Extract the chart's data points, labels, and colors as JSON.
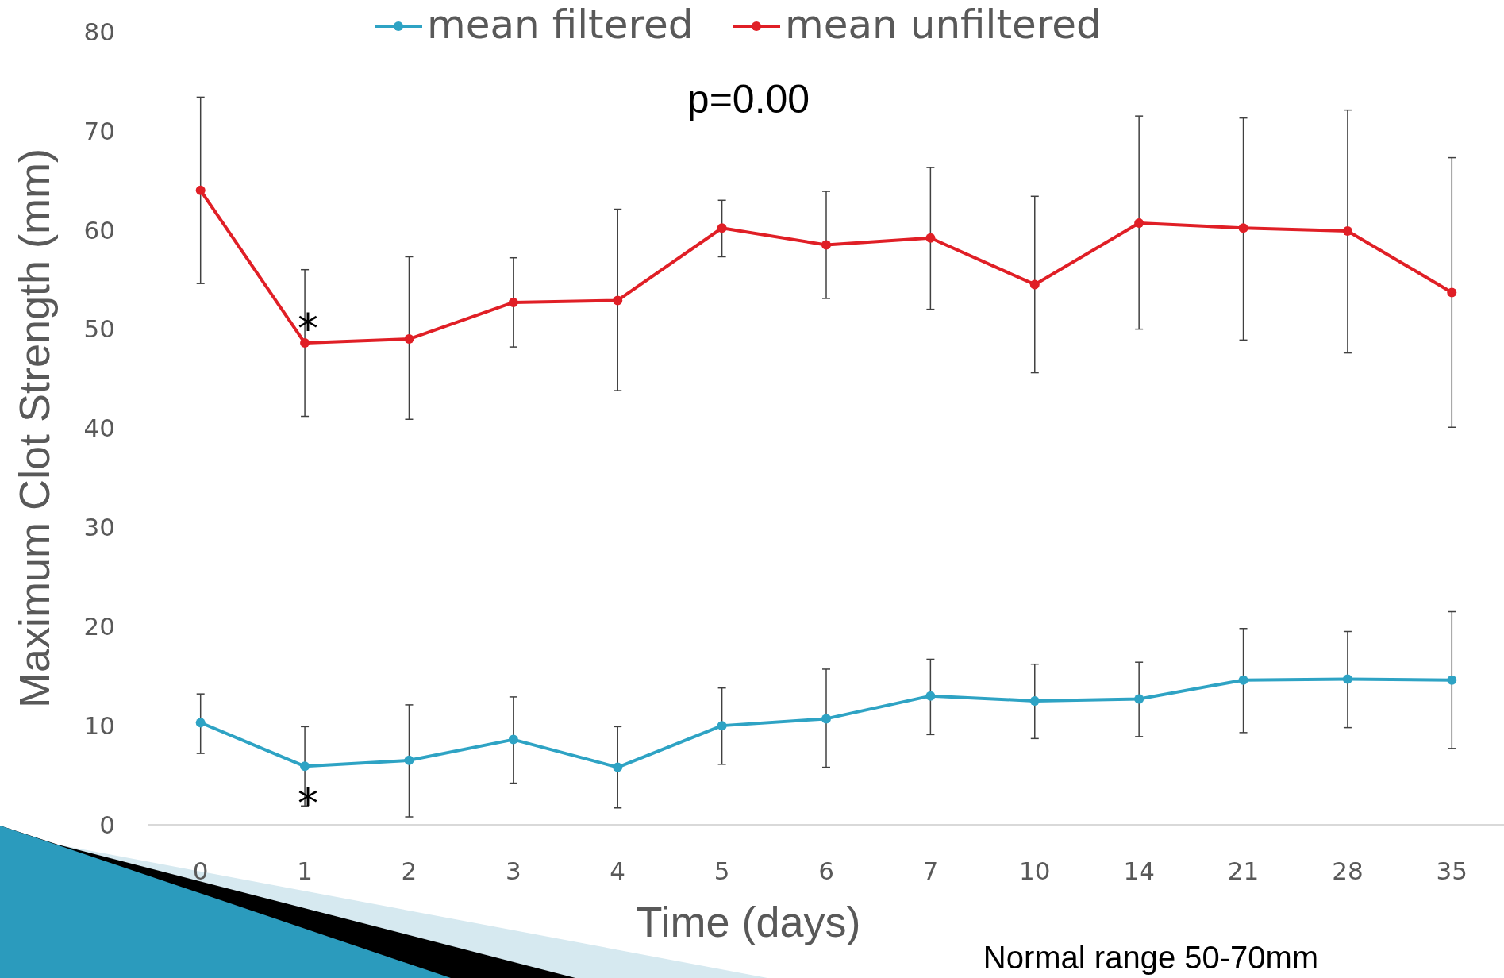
{
  "chart_data": {
    "type": "line",
    "ylabel": "Maximum Clot Strength (mm)",
    "xlabel": "Time (days)",
    "categories": [
      "0",
      "1",
      "2",
      "3",
      "4",
      "5",
      "6",
      "7",
      "10",
      "14",
      "21",
      "28",
      "35"
    ],
    "ylim": [
      0,
      80
    ],
    "yticks": [
      0,
      10,
      20,
      30,
      40,
      50,
      60,
      70,
      80
    ],
    "grid": false,
    "legend": "top",
    "marker": "circle",
    "line_style": "solid",
    "series": [
      {
        "name": "mean filtered",
        "color": "#2ea3c4",
        "values": [
          10.3,
          5.9,
          6.5,
          8.6,
          5.8,
          10.0,
          10.7,
          13.0,
          12.5,
          12.7,
          14.6,
          14.7,
          14.6
        ],
        "errors": [
          [
            7.2,
            13.2
          ],
          [
            1.9,
            9.9
          ],
          [
            0.8,
            12.1
          ],
          [
            4.2,
            12.9
          ],
          [
            1.7,
            9.9
          ],
          [
            6.1,
            13.8
          ],
          [
            5.8,
            15.7
          ],
          [
            9.1,
            16.7
          ],
          [
            8.7,
            16.2
          ],
          [
            8.9,
            16.4
          ],
          [
            9.3,
            19.8
          ],
          [
            9.8,
            19.5
          ],
          [
            7.7,
            21.5
          ]
        ]
      },
      {
        "name": "mean unfiltered",
        "color": "#e01f26",
        "values": [
          64.0,
          48.6,
          49.0,
          52.7,
          52.9,
          60.2,
          58.5,
          59.2,
          54.5,
          60.7,
          60.2,
          59.9,
          53.7
        ],
        "errors": [
          [
            54.6,
            73.4
          ],
          [
            41.2,
            56.0
          ],
          [
            40.9,
            57.3
          ],
          [
            48.2,
            57.2
          ],
          [
            43.8,
            62.1
          ],
          [
            57.3,
            63.0
          ],
          [
            53.1,
            63.9
          ],
          [
            52.0,
            66.3
          ],
          [
            45.6,
            63.4
          ],
          [
            50.0,
            71.5
          ],
          [
            48.9,
            71.3
          ],
          [
            47.6,
            72.1
          ],
          [
            40.1,
            67.3
          ]
        ]
      }
    ],
    "annotations": [
      "p=0.00",
      "Normal range 50-70mm",
      {
        "text": "*",
        "x": "1",
        "y": 51.5
      },
      {
        "text": "*",
        "x": "1",
        "y": 3.6
      }
    ]
  }
}
